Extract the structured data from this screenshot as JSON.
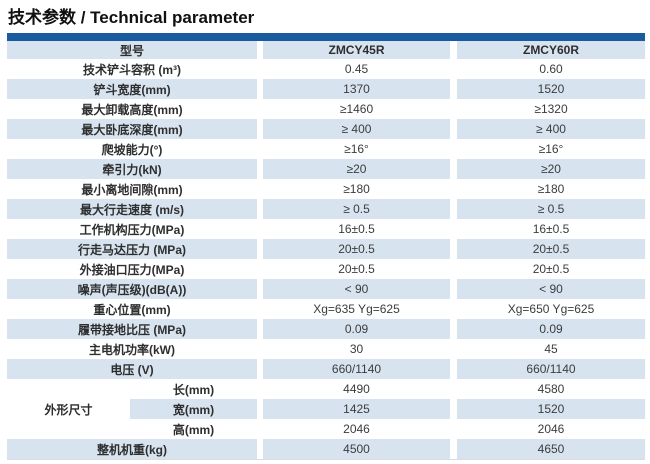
{
  "page": {
    "title": "技术参数 / Technical parameter"
  },
  "colors": {
    "top_bar": "#1a5a9e",
    "row_stripe": "#d7e4f0",
    "text": "#3c3c3c",
    "label_text": "#2e2e2e"
  },
  "table": {
    "header": {
      "model_label": "型号",
      "model_a": "ZMCY45R",
      "model_b": "ZMCY60R"
    },
    "rows": [
      {
        "label": "技术铲斗容积 (m³)",
        "v1": "0.45",
        "v2": "0.60"
      },
      {
        "label": "铲斗宽度(mm)",
        "v1": "1370",
        "v2": "1520"
      },
      {
        "label": "最大卸载高度(mm)",
        "v1": "≥1460",
        "v2": "≥1320"
      },
      {
        "label": "最大卧底深度(mm)",
        "v1": "≥ 400",
        "v2": "≥ 400"
      },
      {
        "label": "爬坡能力(°)",
        "v1": "≥16°",
        "v2": "≥16°"
      },
      {
        "label": "牵引力(kN)",
        "v1": "≥20",
        "v2": "≥20"
      },
      {
        "label": "最小离地间隙(mm)",
        "v1": "≥180",
        "v2": "≥180"
      },
      {
        "label": "最大行走速度 (m/s)",
        "v1": "≥ 0.5",
        "v2": "≥ 0.5"
      },
      {
        "label": "工作机构压力(MPa)",
        "v1": "16±0.5",
        "v2": "16±0.5"
      },
      {
        "label": "行走马达压力 (MPa)",
        "v1": "20±0.5",
        "v2": "20±0.5"
      },
      {
        "label": "外接油口压力(MPa)",
        "v1": "20±0.5",
        "v2": "20±0.5"
      },
      {
        "label": "噪声(声压级)(dB(A))",
        "v1": "< 90",
        "v2": "< 90"
      },
      {
        "label": "重心位置(mm)",
        "v1": "Xg=635 Yg=625",
        "v2": "Xg=650 Yg=625"
      },
      {
        "label": "履带接地比压 (MPa)",
        "v1": "0.09",
        "v2": "0.09"
      },
      {
        "label": "主电机功率(kW)",
        "v1": "30",
        "v2": "45"
      },
      {
        "label": "电压 (V)",
        "v1": "660/1140",
        "v2": "660/1140"
      }
    ],
    "dimensions": {
      "group_label": "外形尺寸",
      "rows": [
        {
          "label": "长(mm)",
          "v1": "4490",
          "v2": "4580"
        },
        {
          "label": "宽(mm)",
          "v1": "1425",
          "v2": "1520"
        },
        {
          "label": "高(mm)",
          "v1": "2046",
          "v2": "2046"
        }
      ]
    },
    "footer": {
      "label": "整机机重(kg)",
      "v1": "4500",
      "v2": "4650"
    }
  }
}
